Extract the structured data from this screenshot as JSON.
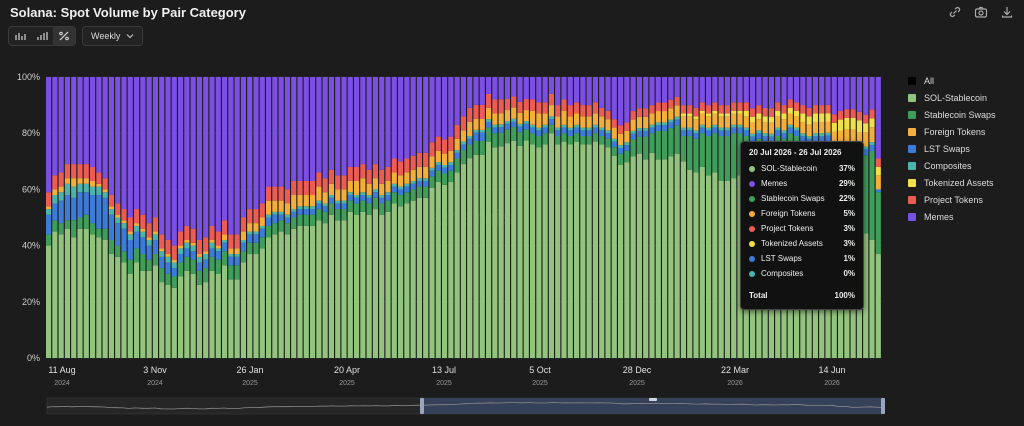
{
  "header": {
    "title": "Solana: Spot Volume by Pair Category"
  },
  "toolbar": {
    "view_modes": [
      "bar-chart-icon",
      "stacked-bars-icon",
      "percent-icon"
    ],
    "active_mode": "percent-icon",
    "interval": "Weekly"
  },
  "top_icons": [
    "link-icon",
    "camera-icon",
    "download-icon"
  ],
  "legend": [
    {
      "label": "All",
      "color": "#000000"
    },
    {
      "label": "SOL-Stablecoin",
      "color": "#93c47d"
    },
    {
      "label": "Stablecoin Swaps",
      "color": "#3f9e5a"
    },
    {
      "label": "Foreign Tokens",
      "color": "#f4ae3b"
    },
    {
      "label": "LST Swaps",
      "color": "#3d7bd9"
    },
    {
      "label": "Composites",
      "color": "#4cb3ad"
    },
    {
      "label": "Tokenized Assets",
      "color": "#f1e04a"
    },
    {
      "label": "Project Tokens",
      "color": "#ec5c55"
    },
    {
      "label": "Memes",
      "color": "#7b4fe3"
    }
  ],
  "tooltip": {
    "date_range": "20 Jul 2026 - 26 Jul 2026",
    "rows": [
      {
        "name": "SOL-Stablecoin",
        "value": "37%",
        "color": "#93c47d"
      },
      {
        "name": "Memes",
        "value": "29%",
        "color": "#7b4fe3"
      },
      {
        "name": "Stablecoin Swaps",
        "value": "22%",
        "color": "#3f9e5a"
      },
      {
        "name": "Foreign Tokens",
        "value": "5%",
        "color": "#f4ae3b"
      },
      {
        "name": "Project Tokens",
        "value": "3%",
        "color": "#ec5c55"
      },
      {
        "name": "Tokenized Assets",
        "value": "3%",
        "color": "#f1e04a"
      },
      {
        "name": "LST Swaps",
        "value": "1%",
        "color": "#3d7bd9"
      },
      {
        "name": "Composites",
        "value": "0%",
        "color": "#4cb3ad"
      }
    ],
    "total_label": "Total",
    "total_value": "100%"
  },
  "chart_data": {
    "type": "bar",
    "stacked": true,
    "percent": true,
    "title": "Solana: Spot Volume by Pair Category",
    "ylim": [
      0,
      100
    ],
    "y_ticks": [
      "0%",
      "20%",
      "40%",
      "60%",
      "80%",
      "100%"
    ],
    "x_ticks": [
      {
        "label": "11 Aug",
        "year": "2024"
      },
      {
        "label": "3 Nov",
        "year": "2024"
      },
      {
        "label": "26 Jan",
        "year": "2025"
      },
      {
        "label": "20 Apr",
        "year": "2025"
      },
      {
        "label": "13 Jul",
        "year": "2025"
      },
      {
        "label": "5 Oct",
        "year": "2025"
      },
      {
        "label": "28 Dec",
        "year": "2025"
      },
      {
        "label": "22 Mar",
        "year": "2026"
      },
      {
        "label": "14 Jun",
        "year": "2026"
      }
    ],
    "series_order": [
      "SOL-Stablecoin",
      "Stablecoin Swaps",
      "LST Swaps",
      "Composites",
      "Foreign Tokens",
      "Tokenized Assets",
      "Project Tokens",
      "Memes"
    ],
    "colors": {
      "SOL-Stablecoin": "#93c47d",
      "Stablecoin Swaps": "#3f9e5a",
      "LST Swaps": "#3d7bd9",
      "Composites": "#4cb3ad",
      "Foreign Tokens": "#f4ae3b",
      "Tokenized Assets": "#f1e04a",
      "Project Tokens": "#ec5c55",
      "Memes": "#7b4fe3"
    },
    "series": [
      {
        "name": "SOL-Stablecoin",
        "values": [
          40,
          45,
          44,
          46,
          43,
          46,
          46,
          44,
          43,
          42,
          37,
          36,
          34,
          30,
          34,
          31,
          31,
          33,
          27,
          26,
          25,
          29,
          31,
          30,
          26,
          27,
          31,
          30,
          33,
          28,
          28,
          34,
          37,
          37,
          39,
          43,
          44,
          45,
          44,
          46,
          47,
          47,
          47,
          49,
          48,
          51,
          49,
          49,
          52,
          51,
          52,
          51,
          53,
          51,
          52,
          55,
          54,
          55,
          56,
          57,
          57,
          60,
          62,
          61,
          62,
          66,
          69,
          71,
          73,
          73,
          77,
          75,
          76,
          78,
          78,
          77,
          79,
          76,
          75,
          76,
          80,
          76,
          77,
          76,
          77,
          76,
          76,
          77,
          76,
          75,
          72,
          68,
          69,
          71,
          72,
          70,
          73,
          70,
          70,
          71,
          72,
          70,
          67,
          66,
          68,
          65,
          66,
          63,
          63,
          64,
          65,
          62,
          58,
          61,
          60,
          58,
          62,
          60,
          63,
          61,
          56,
          55,
          55,
          55,
          56,
          45,
          47,
          40,
          38,
          42,
          43,
          40,
          37
        ]
      },
      {
        "name": "Stablecoin Swaps",
        "values": [
          4,
          4,
          4,
          3,
          6,
          4,
          5,
          4,
          3,
          4,
          5,
          4,
          4,
          5,
          5,
          6,
          4,
          4,
          5,
          4,
          4,
          5,
          5,
          5,
          5,
          5,
          5,
          5,
          5,
          5,
          5,
          4,
          4,
          4,
          4,
          4,
          4,
          4,
          4,
          4,
          4,
          4,
          4,
          4,
          4,
          4,
          4,
          4,
          4,
          4,
          4,
          4,
          4,
          4,
          4,
          4,
          4,
          4,
          4,
          4,
          4,
          4,
          4,
          4,
          4,
          5,
          5,
          5,
          5,
          5,
          5,
          5,
          5,
          5,
          5,
          5,
          4,
          4,
          4,
          4,
          3,
          3,
          3,
          3,
          3,
          3,
          3,
          3,
          3,
          3,
          3,
          4,
          4,
          6,
          6,
          8,
          7,
          10,
          10,
          10,
          10,
          9,
          12,
          12,
          12,
          14,
          14,
          16,
          16,
          16,
          15,
          17,
          18,
          17,
          17,
          18,
          17,
          18,
          17,
          18,
          21,
          21,
          22,
          22,
          22,
          27,
          26,
          31,
          33,
          28,
          27,
          30,
          22
        ]
      },
      {
        "name": "LST Swaps",
        "values": [
          7,
          6,
          8,
          9,
          8,
          9,
          8,
          10,
          12,
          11,
          9,
          8,
          8,
          7,
          6,
          6,
          5,
          5,
          4,
          4,
          3,
          3,
          3,
          3,
          3,
          3,
          3,
          3,
          3,
          3,
          3,
          3,
          3,
          3,
          3,
          3,
          3,
          2,
          2,
          2,
          2,
          2,
          2,
          2,
          2,
          2,
          2,
          2,
          2,
          2,
          2,
          2,
          2,
          2,
          2,
          2,
          2,
          2,
          2,
          2,
          2,
          2,
          2,
          2,
          2,
          2,
          2,
          2,
          3,
          3,
          2,
          2,
          2,
          2,
          2,
          2,
          2,
          2,
          2,
          2,
          2,
          2,
          2,
          2,
          2,
          2,
          2,
          2,
          2,
          2,
          2,
          2,
          2,
          2,
          2,
          2,
          2,
          2,
          2,
          2,
          2,
          2,
          2,
          2,
          2,
          2,
          2,
          2,
          2,
          2,
          2,
          2,
          2,
          2,
          2,
          2,
          2,
          2,
          2,
          2,
          2,
          2,
          2,
          2,
          2,
          2,
          2,
          2,
          2,
          2,
          2,
          2,
          1
        ]
      },
      {
        "name": "Composites",
        "values": [
          2,
          3,
          3,
          4,
          4,
          3,
          3,
          3,
          3,
          2,
          2,
          2,
          2,
          2,
          2,
          2,
          2,
          2,
          2,
          2,
          2,
          2,
          2,
          2,
          2,
          2,
          2,
          1,
          1,
          1,
          1,
          1,
          1,
          1,
          1,
          1,
          1,
          1,
          1,
          1,
          1,
          1,
          1,
          1,
          1,
          1,
          1,
          1,
          1,
          1,
          1,
          1,
          1,
          1,
          1,
          1,
          1,
          1,
          1,
          1,
          1,
          1,
          1,
          1,
          1,
          1,
          1,
          1,
          1,
          1,
          1,
          1,
          1,
          1,
          1,
          1,
          1,
          1,
          1,
          1,
          1,
          1,
          1,
          1,
          1,
          1,
          1,
          1,
          1,
          1,
          1,
          1,
          1,
          1,
          1,
          1,
          1,
          1,
          1,
          1,
          1,
          1,
          1,
          1,
          1,
          1,
          1,
          1,
          1,
          1,
          1,
          1,
          1,
          1,
          1,
          1,
          1,
          1,
          1,
          1,
          1,
          1,
          1,
          1,
          1,
          1,
          1,
          1,
          1,
          1,
          1,
          1,
          0
        ]
      },
      {
        "name": "Foreign Tokens",
        "values": [
          1,
          2,
          2,
          2,
          3,
          2,
          2,
          2,
          1,
          1,
          1,
          1,
          1,
          1,
          1,
          1,
          1,
          1,
          1,
          1,
          1,
          1,
          1,
          1,
          1,
          1,
          1,
          1,
          2,
          2,
          2,
          3,
          3,
          3,
          3,
          5,
          4,
          4,
          4,
          5,
          4,
          4,
          4,
          5,
          4,
          4,
          4,
          4,
          4,
          5,
          5,
          4,
          4,
          4,
          4,
          4,
          4,
          4,
          4,
          4,
          4,
          4,
          4,
          4,
          4,
          4,
          4,
          5,
          4,
          4,
          4,
          4,
          4,
          4,
          4,
          4,
          4,
          5,
          5,
          4,
          4,
          4,
          5,
          4,
          4,
          4,
          4,
          4,
          4,
          4,
          4,
          4,
          4,
          4,
          4,
          4,
          4,
          4,
          4,
          4,
          4,
          4,
          4,
          4,
          4,
          4,
          4,
          4,
          4,
          4,
          4,
          4,
          4,
          4,
          4,
          4,
          4,
          4,
          4,
          4,
          4,
          4,
          4,
          4,
          4,
          4,
          4,
          4,
          4,
          5,
          5,
          5,
          5
        ]
      },
      {
        "name": "Tokenized Assets",
        "values": [
          0,
          0,
          0,
          0,
          0,
          0,
          0,
          0,
          0,
          0,
          0,
          0,
          0,
          0,
          0,
          0,
          0,
          0,
          0,
          0,
          0,
          0,
          0,
          0,
          0,
          0,
          0,
          0,
          0,
          0,
          0,
          0,
          0,
          0,
          0,
          0,
          0,
          0,
          0,
          0,
          0,
          0,
          0,
          0,
          0,
          0,
          0,
          0,
          0,
          0,
          0,
          0,
          0,
          0,
          0,
          0,
          0,
          0,
          0,
          0,
          0,
          0,
          0,
          0,
          0,
          0,
          0,
          0,
          0,
          0,
          0,
          0,
          0,
          0,
          0,
          0,
          0,
          0,
          0,
          0,
          0,
          0,
          0,
          0,
          0,
          0,
          0,
          0,
          0,
          0,
          0,
          0,
          0,
          0,
          0,
          0,
          0,
          0,
          0,
          0,
          0,
          1,
          1,
          1,
          1,
          1,
          1,
          1,
          1,
          1,
          1,
          2,
          2,
          2,
          2,
          2,
          2,
          2,
          2,
          2,
          3,
          3,
          3,
          3,
          3,
          3,
          4,
          4,
          4,
          4,
          3,
          3,
          3
        ]
      },
      {
        "name": "Project Tokens",
        "values": [
          5,
          5,
          5,
          5,
          5,
          5,
          5,
          5,
          4,
          4,
          4,
          4,
          4,
          5,
          5,
          5,
          5,
          5,
          5,
          5,
          5,
          5,
          5,
          5,
          5,
          5,
          5,
          5,
          5,
          5,
          5,
          5,
          5,
          5,
          5,
          5,
          5,
          5,
          5,
          5,
          5,
          5,
          5,
          5,
          5,
          5,
          5,
          5,
          5,
          5,
          5,
          5,
          5,
          5,
          5,
          5,
          5,
          5,
          5,
          5,
          5,
          5,
          5,
          5,
          5,
          5,
          5,
          5,
          5,
          5,
          5,
          5,
          5,
          4,
          4,
          4,
          4,
          4,
          4,
          4,
          4,
          4,
          4,
          4,
          4,
          4,
          4,
          4,
          3,
          3,
          3,
          3,
          3,
          3,
          3,
          3,
          3,
          3,
          3,
          3,
          3,
          3,
          3,
          3,
          3,
          3,
          3,
          3,
          3,
          3,
          3,
          3,
          3,
          3,
          3,
          3,
          3,
          3,
          3,
          3,
          3,
          3,
          3,
          3,
          3,
          3,
          3,
          3,
          3,
          3,
          3,
          3,
          3
        ]
      },
      {
        "name": "Memes",
        "values": [
          41,
          35,
          34,
          31,
          31,
          31,
          31,
          32,
          34,
          36,
          42,
          45,
          47,
          50,
          47,
          49,
          52,
          50,
          56,
          58,
          60,
          55,
          53,
          54,
          58,
          57,
          53,
          55,
          51,
          56,
          56,
          50,
          47,
          47,
          45,
          39,
          39,
          39,
          40,
          37,
          37,
          37,
          37,
          34,
          36,
          33,
          35,
          35,
          32,
          32,
          31,
          33,
          31,
          33,
          32,
          29,
          30,
          29,
          28,
          27,
          27,
          23,
          21,
          22,
          21,
          17,
          14,
          11,
          10,
          10,
          6,
          8,
          8,
          8,
          7,
          9,
          8,
          8,
          9,
          9,
          6,
          10,
          8,
          10,
          9,
          10,
          10,
          9,
          11,
          12,
          15,
          17,
          16,
          12,
          11,
          11,
          10,
          9,
          9,
          8,
          7,
          10,
          10,
          11,
          9,
          10,
          9,
          10,
          10,
          9,
          9,
          9,
          11,
          10,
          11,
          11,
          9,
          10,
          8,
          9,
          10,
          11,
          10,
          10,
          10,
          13,
          12,
          11,
          11,
          12,
          13,
          11,
          29
        ]
      }
    ]
  }
}
